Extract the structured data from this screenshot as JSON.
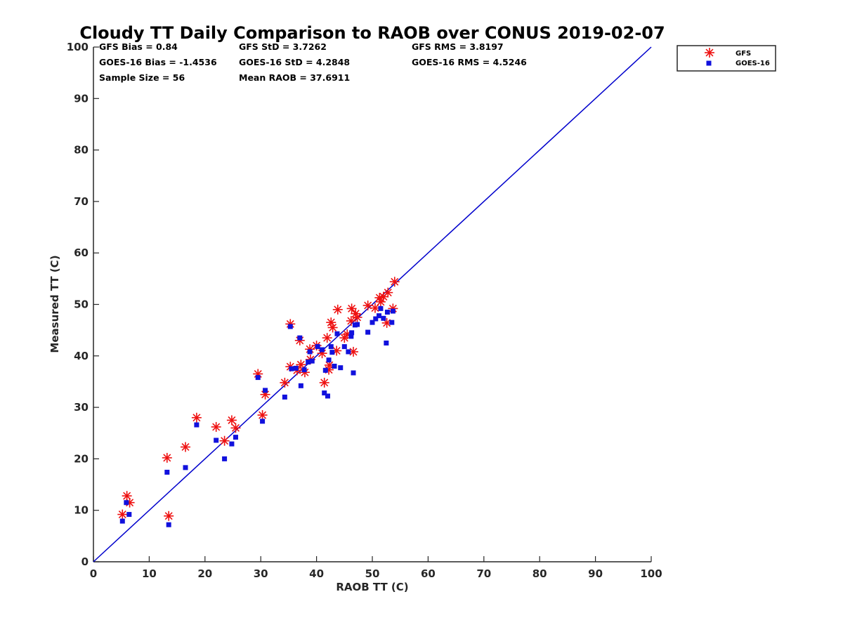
{
  "chart_data": {
    "type": "scatter",
    "title": "Cloudy TT Daily Comparison to RAOB over CONUS 2019-02-07",
    "xlabel": "RAOB TT (C)",
    "ylabel": "Measured TT (C)",
    "xlim": [
      0,
      100
    ],
    "ylim": [
      0,
      100
    ],
    "xticks": [
      "0",
      "10",
      "20",
      "30",
      "40",
      "50",
      "60",
      "70",
      "80",
      "90",
      "100"
    ],
    "yticks": [
      "0",
      "10",
      "20",
      "30",
      "40",
      "50",
      "60",
      "70",
      "80",
      "90",
      "100"
    ],
    "grid": false,
    "legend_position": "outside-top-right",
    "reference_line": {
      "from": [
        0,
        0
      ],
      "to": [
        100,
        100
      ],
      "color": "#0000cc"
    },
    "stats": [
      [
        "GFS Bias = 0.84",
        "GFS StD = 3.7262",
        "GFS RMS = 3.8197"
      ],
      [
        "GOES-16 Bias = -1.4536",
        "GOES-16 StD = 4.2848",
        "GOES-16 RMS = 4.5246"
      ],
      [
        "Sample Size = 56",
        "Mean RAOB = 37.6911"
      ]
    ],
    "series": [
      {
        "name": "GFS",
        "marker": "asterisk",
        "color": "#ee1111",
        "points": [
          [
            5.2,
            9.2
          ],
          [
            6.0,
            12.8
          ],
          [
            6.5,
            11.5
          ],
          [
            13.2,
            20.2
          ],
          [
            13.5,
            8.9
          ],
          [
            16.5,
            22.3
          ],
          [
            18.5,
            28.0
          ],
          [
            22.0,
            26.2
          ],
          [
            23.5,
            23.5
          ],
          [
            24.8,
            27.5
          ],
          [
            25.5,
            26.0
          ],
          [
            29.5,
            36.5
          ],
          [
            30.3,
            28.5
          ],
          [
            30.8,
            32.5
          ],
          [
            34.3,
            34.8
          ],
          [
            35.3,
            46.2
          ],
          [
            35.3,
            37.9
          ],
          [
            36.5,
            37.2
          ],
          [
            37.0,
            43.0
          ],
          [
            37.2,
            38.3
          ],
          [
            37.9,
            36.8
          ],
          [
            38.8,
            41.3
          ],
          [
            38.9,
            39.3
          ],
          [
            40.0,
            42.0
          ],
          [
            41.0,
            40.5
          ],
          [
            41.4,
            34.8
          ],
          [
            41.9,
            43.5
          ],
          [
            42.2,
            37.3
          ],
          [
            42.3,
            38.2
          ],
          [
            42.6,
            46.5
          ],
          [
            42.9,
            45.5
          ],
          [
            43.6,
            41.0
          ],
          [
            43.8,
            49.0
          ],
          [
            45.0,
            43.5
          ],
          [
            45.5,
            44.2
          ],
          [
            46.2,
            46.8
          ],
          [
            46.3,
            49.2
          ],
          [
            46.6,
            40.8
          ],
          [
            47.0,
            48.2
          ],
          [
            47.3,
            47.5
          ],
          [
            49.2,
            49.8
          ],
          [
            50.5,
            49.3
          ],
          [
            51.3,
            51.3
          ],
          [
            51.5,
            50.5
          ],
          [
            52.0,
            51.5
          ],
          [
            52.6,
            46.4
          ],
          [
            52.8,
            52.3
          ],
          [
            53.7,
            49.2
          ],
          [
            54.0,
            54.4
          ]
        ]
      },
      {
        "name": "GOES-16",
        "marker": "square",
        "color": "#1111dd",
        "points": [
          [
            5.2,
            7.9
          ],
          [
            5.9,
            11.5
          ],
          [
            6.4,
            9.2
          ],
          [
            13.2,
            17.4
          ],
          [
            13.5,
            7.2
          ],
          [
            16.5,
            18.3
          ],
          [
            18.5,
            26.6
          ],
          [
            22.0,
            23.6
          ],
          [
            23.5,
            20.0
          ],
          [
            24.8,
            22.9
          ],
          [
            25.5,
            24.2
          ],
          [
            29.5,
            35.8
          ],
          [
            30.3,
            27.3
          ],
          [
            30.8,
            33.3
          ],
          [
            34.3,
            32.0
          ],
          [
            35.3,
            45.7
          ],
          [
            35.5,
            37.5
          ],
          [
            36.3,
            37.6
          ],
          [
            37.0,
            43.5
          ],
          [
            37.2,
            34.2
          ],
          [
            37.8,
            37.3
          ],
          [
            38.5,
            38.8
          ],
          [
            38.8,
            40.8
          ],
          [
            39.2,
            39.0
          ],
          [
            40.2,
            41.8
          ],
          [
            41.0,
            41.2
          ],
          [
            41.4,
            32.8
          ],
          [
            41.6,
            37.2
          ],
          [
            42.0,
            32.2
          ],
          [
            42.2,
            39.2
          ],
          [
            42.6,
            41.8
          ],
          [
            42.8,
            40.7
          ],
          [
            43.2,
            38.0
          ],
          [
            43.7,
            44.3
          ],
          [
            44.3,
            37.7
          ],
          [
            45.0,
            41.8
          ],
          [
            45.7,
            40.8
          ],
          [
            46.2,
            43.8
          ],
          [
            46.3,
            44.5
          ],
          [
            46.6,
            36.7
          ],
          [
            46.9,
            46.0
          ],
          [
            47.3,
            46.1
          ],
          [
            49.2,
            44.6
          ],
          [
            50.0,
            46.5
          ],
          [
            50.6,
            47.2
          ],
          [
            51.2,
            47.8
          ],
          [
            51.5,
            49.2
          ],
          [
            52.0,
            47.3
          ],
          [
            52.5,
            42.5
          ],
          [
            52.7,
            48.5
          ],
          [
            53.5,
            46.5
          ],
          [
            53.7,
            48.7
          ]
        ]
      }
    ]
  }
}
